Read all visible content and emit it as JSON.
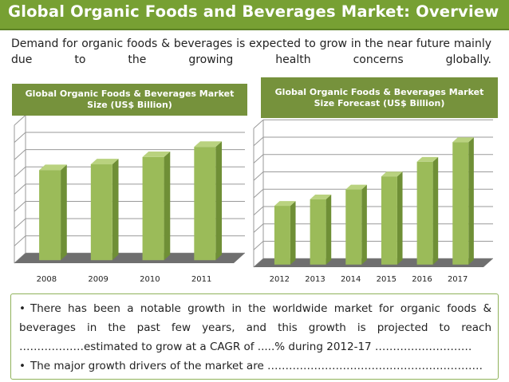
{
  "title": "Global Organic Foods and Beverages Market: Overview",
  "intro": "Demand for organic foods & beverages is expected to grow in the near future mainly due to the growing health concerns globally.",
  "bullets": {
    "b1_line1": "There has been a notable growth in the worldwide market for organic foods &",
    "b1_line2": "beverages in the past few years, and this growth is projected to reach",
    "b1_line3": "………………estimated to grow at a CAGR of .....% during 2012-17 ………………………",
    "b2": "The major growth drivers of the market are ……………………………………………………"
  },
  "chart_data": [
    {
      "type": "bar",
      "title": "Global Organic Foods & Beverages Market Size (US$ Billion)",
      "categories": [
        "2008",
        "2009",
        "2010",
        "2011"
      ],
      "values": [
        62,
        66,
        71,
        78
      ],
      "ylim": [
        0,
        95
      ],
      "grid": true,
      "xlabel": "",
      "ylabel": "",
      "colors": {
        "bar": "#9bbb59",
        "bar_side": "#6f8f36",
        "bar_top": "#b9d27f",
        "floor": "#6f6f6f"
      }
    },
    {
      "type": "bar",
      "title": "Global Organic Foods & Beverages Market Size Forecast (US$ Billion)",
      "categories": [
        "2012",
        "2013",
        "2014",
        "2015",
        "2016",
        "2017"
      ],
      "values": [
        36,
        40,
        46,
        54,
        63,
        75
      ],
      "ylim": [
        0,
        85
      ],
      "grid": true,
      "xlabel": "",
      "ylabel": "",
      "colors": {
        "bar": "#9bbb59",
        "bar_side": "#6f8f36",
        "bar_top": "#b9d27f",
        "floor": "#6f6f6f"
      }
    }
  ]
}
